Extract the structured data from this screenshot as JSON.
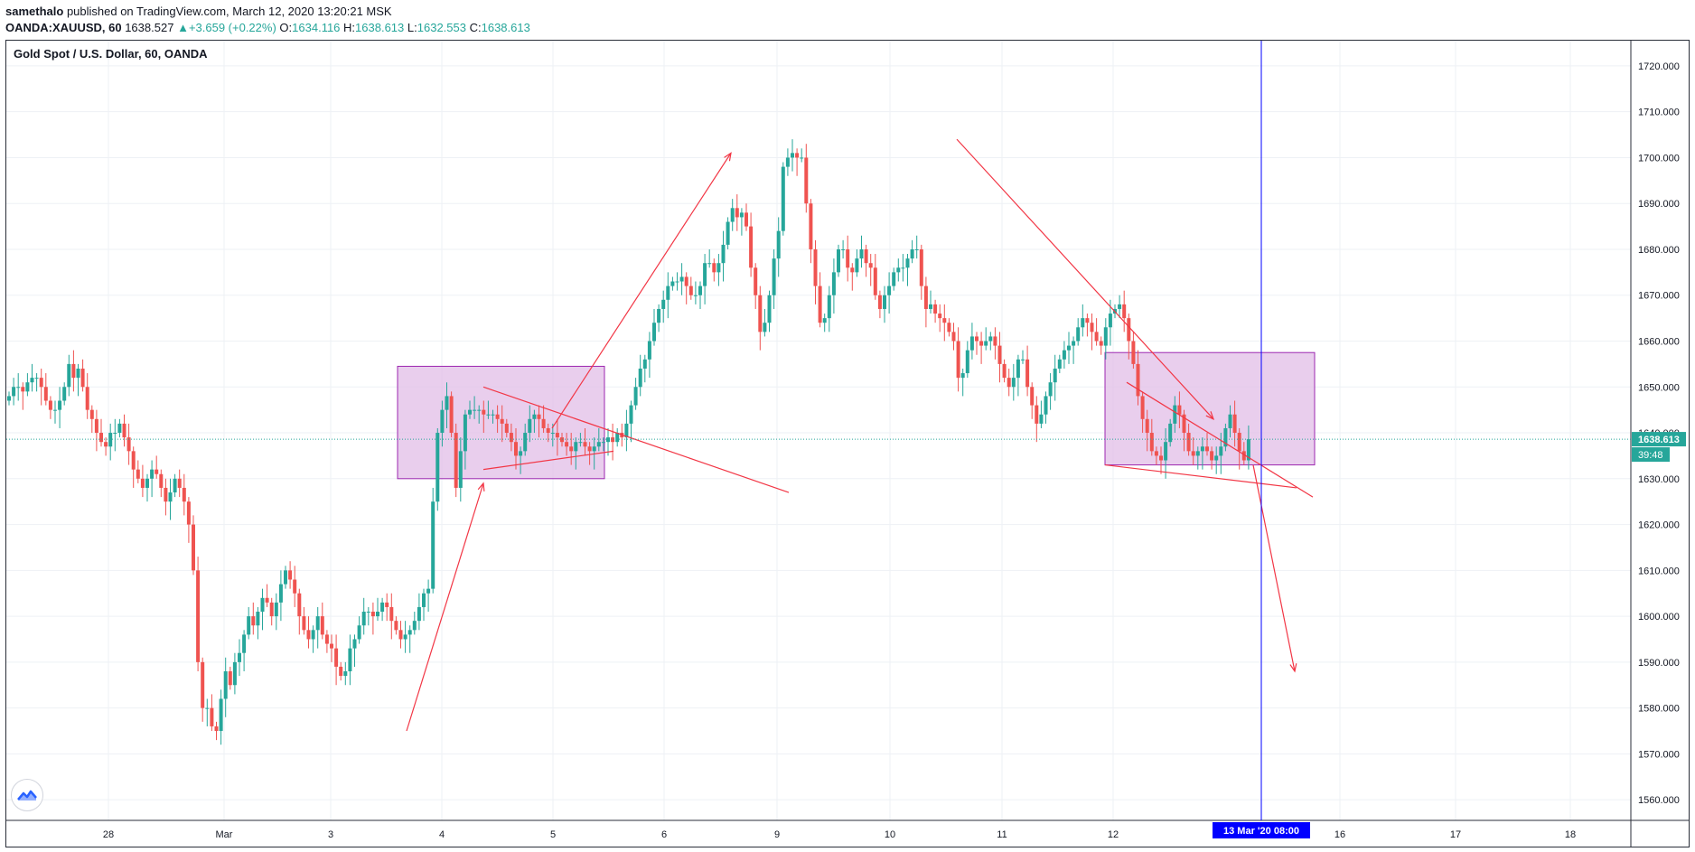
{
  "header": {
    "author": "samethalo",
    "published": "published on TradingView.com, March 12, 2020 13:20:21 MSK"
  },
  "ohlc": {
    "symbol": "OANDA:XAUUSD, 60",
    "last": "1638.527",
    "change": "+3.659 (+0.22%)",
    "o_label": "O:",
    "o": "1634.116",
    "h_label": "H:",
    "h": "1638.613",
    "l_label": "L:",
    "l": "1632.553",
    "c_label": "C:",
    "c": "1638.613"
  },
  "chart_title": "Gold Spot / U.S. Dollar, 60, OANDA",
  "colors": {
    "up": "#26a69a",
    "down": "#ef5350",
    "drawing": "#f23645",
    "zone_fill": "#e1bee7",
    "zone_border": "#9c27b0",
    "vline": "#0000ff",
    "price_line": "#26a69a",
    "grid": "#eef1f5"
  },
  "chart_data": {
    "type": "candlestick",
    "y_ticks": [
      "1720.000",
      "1710.000",
      "1700.000",
      "1690.000",
      "1680.000",
      "1670.000",
      "1660.000",
      "1650.000",
      "1640.000",
      "1630.000",
      "1620.000",
      "1610.000",
      "1600.000",
      "1590.000",
      "1580.000",
      "1570.000",
      "1560.000"
    ],
    "ylim": [
      1555.5,
      1725.5
    ],
    "x_ticks": [
      "28",
      "Mar",
      "3",
      "4",
      "5",
      "6",
      "9",
      "10",
      "11",
      "12",
      "16",
      "17",
      "18"
    ],
    "current_price_label": "1638.613",
    "countdown_label": "39:48",
    "cursor_label": "13 Mar '20   08:00",
    "grid": true,
    "series": [
      {
        "name": "XAUUSD 60",
        "close": [
          1648,
          1650,
          1650,
          1649,
          1651,
          1652,
          1652,
          1650,
          1647,
          1645,
          1645,
          1647,
          1650,
          1655,
          1652,
          1654,
          1650,
          1645,
          1643,
          1640,
          1638,
          1637,
          1640,
          1640,
          1642,
          1639,
          1636,
          1632,
          1630,
          1628,
          1630,
          1632,
          1631,
          1628,
          1625,
          1627,
          1630,
          1628,
          1625,
          1620,
          1610,
          1590,
          1580,
          1580,
          1576,
          1575,
          1582,
          1588,
          1585,
          1590,
          1592,
          1596,
          1600,
          1598,
          1601,
          1604,
          1603,
          1600,
          1603,
          1607,
          1610,
          1608,
          1605,
          1600,
          1597,
          1595,
          1597,
          1600,
          1596,
          1594,
          1593,
          1589,
          1587,
          1588,
          1593,
          1595,
          1598,
          1601,
          1601,
          1600,
          1601,
          1603,
          1602,
          1599,
          1597,
          1595,
          1596,
          1597,
          1599,
          1602,
          1605,
          1606,
          1625,
          1640,
          1645,
          1648,
          1640,
          1628,
          1636,
          1644,
          1645,
          1645,
          1645,
          1644,
          1644,
          1644,
          1643,
          1642,
          1640,
          1638,
          1635,
          1636,
          1640,
          1643,
          1644,
          1643,
          1641,
          1640,
          1640,
          1639,
          1638,
          1637,
          1636,
          1638,
          1638,
          1637,
          1636,
          1637,
          1638,
          1638,
          1639,
          1638,
          1640,
          1639,
          1642,
          1646,
          1650,
          1654,
          1656,
          1660,
          1664,
          1667,
          1669,
          1672,
          1673,
          1673,
          1674,
          1672,
          1670,
          1670,
          1672,
          1677,
          1677,
          1675,
          1677,
          1681,
          1686,
          1689,
          1687,
          1688,
          1685,
          1676,
          1670,
          1662,
          1664,
          1670,
          1678,
          1684,
          1698,
          1700,
          1701,
          1700,
          1700,
          1690,
          1680,
          1672,
          1664,
          1665,
          1670,
          1675,
          1680,
          1680,
          1676,
          1675,
          1678,
          1680,
          1677,
          1676,
          1670,
          1667,
          1670,
          1672,
          1675,
          1676,
          1676,
          1678,
          1680,
          1680,
          1672,
          1667,
          1668,
          1666,
          1665,
          1664,
          1662,
          1660,
          1652,
          1653,
          1658,
          1661,
          1660,
          1659,
          1660,
          1661,
          1659,
          1655,
          1652,
          1650,
          1652,
          1656,
          1656,
          1650,
          1646,
          1642,
          1644,
          1648,
          1651,
          1654,
          1656,
          1658,
          1659,
          1660,
          1663,
          1665,
          1664,
          1662,
          1660,
          1659,
          1663,
          1666,
          1667,
          1668,
          1665,
          1660,
          1655,
          1648,
          1643,
          1640,
          1636,
          1635,
          1634,
          1638,
          1642,
          1646,
          1644,
          1640,
          1636,
          1635,
          1636,
          1637,
          1636,
          1634,
          1635,
          1637,
          1641,
          1644,
          1640,
          1636,
          1634,
          1638.6
        ]
      }
    ],
    "annotations": [
      {
        "type": "rectangle",
        "name": "consolidation-box-1"
      },
      {
        "type": "rectangle",
        "name": "consolidation-box-2"
      },
      {
        "type": "arrow-lines",
        "name": "trend-arrows"
      }
    ]
  }
}
